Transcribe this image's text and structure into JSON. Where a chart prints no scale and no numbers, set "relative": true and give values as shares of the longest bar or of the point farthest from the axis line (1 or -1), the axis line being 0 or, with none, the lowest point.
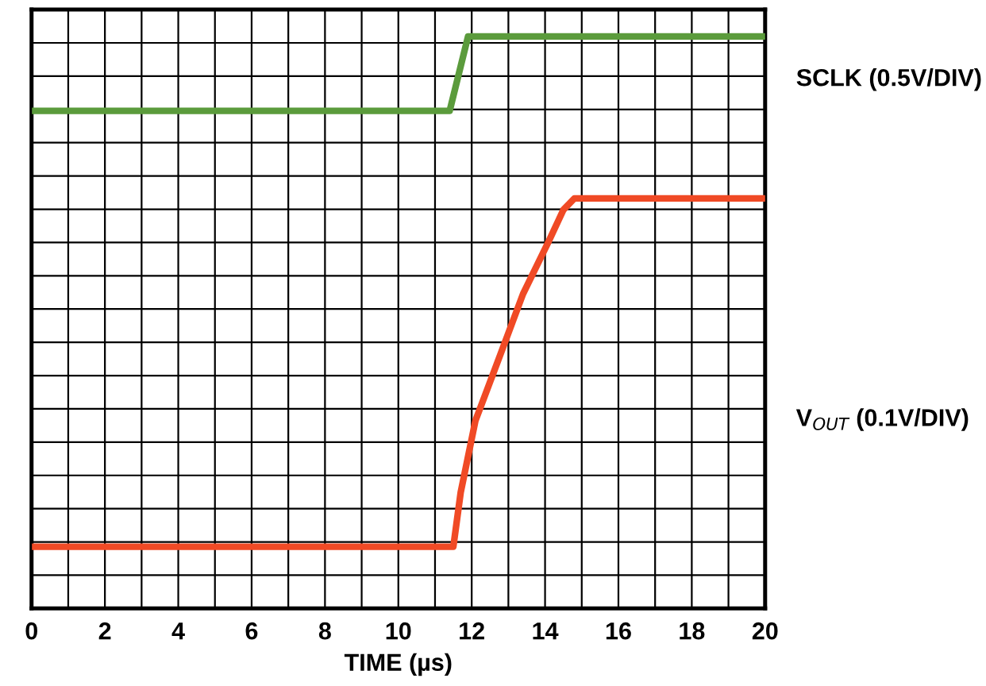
{
  "chart_data": {
    "type": "line",
    "relative": true,
    "xlabel": "TIME (µs)",
    "grid": true,
    "line_style": "solid",
    "marker": "none",
    "xlim": [
      0,
      20
    ],
    "xticks": [
      0,
      {
        "value": 1,
        "label": null
      },
      2,
      {
        "value": 3,
        "label": null
      },
      4,
      {
        "value": 5,
        "label": null
      },
      6,
      {
        "value": 7,
        "label": null
      },
      8,
      {
        "value": 9,
        "label": null
      },
      10,
      {
        "value": 11,
        "label": null
      },
      12,
      {
        "value": 13,
        "label": null
      },
      14,
      {
        "value": 15,
        "label": null
      },
      16,
      {
        "value": 17,
        "label": null
      },
      18,
      {
        "value": 19,
        "label": null
      },
      20
    ],
    "series": [
      {
        "name": "SCLK (0.5V/DIV)",
        "color": "#5b9b3c",
        "x": [
          0.1,
          11.4,
          11.9,
          20
        ],
        "values": [
          0.87,
          0.87,
          1,
          1
        ]
      },
      {
        "name": "V$_{OUT}$ (0.1V/DIV)",
        "color": "#f04a25",
        "x": [
          0.1,
          11.5,
          11.7,
          12.1,
          12.8,
          13.4,
          14.1,
          14.5,
          14.8,
          20
        ],
        "values": [
          0.108,
          0.108,
          0.203,
          0.328,
          0.447,
          0.55,
          0.642,
          0.697,
          0.717,
          0.717
        ]
      }
    ]
  }
}
